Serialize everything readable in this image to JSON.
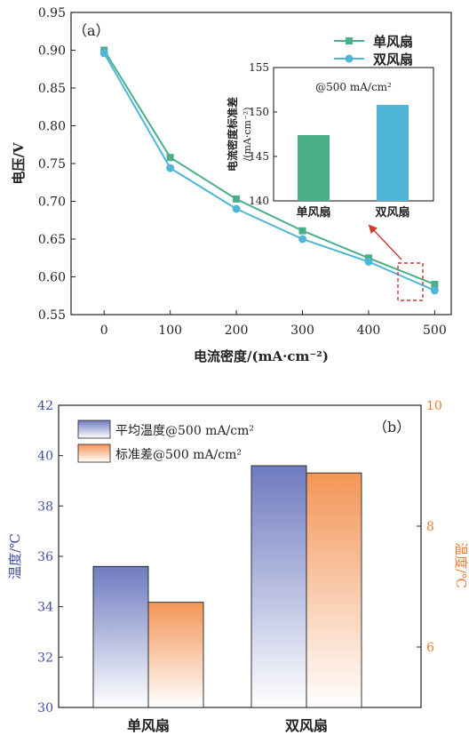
{
  "chart_data": [
    {
      "type": "line",
      "panel_label": "（a）",
      "xlabel": "电流密度/(mA·cm⁻²)",
      "ylabel": "电压/V",
      "x": [
        0,
        100,
        200,
        300,
        400,
        500
      ],
      "xlim": [
        -50,
        525
      ],
      "ylim": [
        0.55,
        0.95
      ],
      "x_ticks": [
        "0",
        "100",
        "200",
        "300",
        "400",
        "500"
      ],
      "y_ticks": [
        "0.55",
        "0.60",
        "0.65",
        "0.70",
        "0.75",
        "0.80",
        "0.85",
        "0.90",
        "0.95"
      ],
      "series": [
        {
          "name": "单风扇",
          "marker": "square",
          "color": "#4aaf86",
          "values": [
            0.9,
            0.758,
            0.703,
            0.661,
            0.625,
            0.59
          ]
        },
        {
          "name": "双风扇",
          "marker": "circle",
          "color": "#4fb6d8",
          "values": [
            0.896,
            0.744,
            0.69,
            0.65,
            0.62,
            0.582
          ]
        }
      ],
      "legend_position": "top-right",
      "grid": false,
      "inset": {
        "type": "bar",
        "title": "@500 mA/cm²",
        "ylabel_line1": "电流密度标准差",
        "ylabel_line2": "/(mA·cm⁻²)",
        "categories": [
          "单风扇",
          "双风扇"
        ],
        "values": [
          147.4,
          150.8
        ],
        "colors": [
          "#4aaf86",
          "#4fb6d8"
        ],
        "ylim": [
          140,
          155
        ],
        "y_ticks": [
          "140",
          "145",
          "150",
          "155"
        ]
      }
    },
    {
      "type": "bar",
      "panel_label": "（b）",
      "categories": [
        "单风扇",
        "双风扇"
      ],
      "ylabel_left": "温度/℃",
      "ylabel_right": "温度/℃",
      "ylim_left": [
        30,
        42
      ],
      "ylim_right": [
        5,
        10
      ],
      "y_ticks_left": [
        "30",
        "32",
        "34",
        "36",
        "38",
        "40",
        "42"
      ],
      "y_ticks_right": [
        "6",
        "8",
        "10"
      ],
      "left_axis_color": "#3d4ea3",
      "right_axis_color": "#ee7b2e",
      "series": [
        {
          "name": "平均温度@500 mA/cm²",
          "axis": "left",
          "color": "#6e7bc0",
          "values": [
            35.6,
            39.6
          ]
        },
        {
          "name": "标准差@500 mA/cm²",
          "axis": "right",
          "color": "#f39556",
          "values": [
            6.74,
            8.88
          ]
        }
      ],
      "legend_position": "top-left",
      "grid": false
    }
  ]
}
